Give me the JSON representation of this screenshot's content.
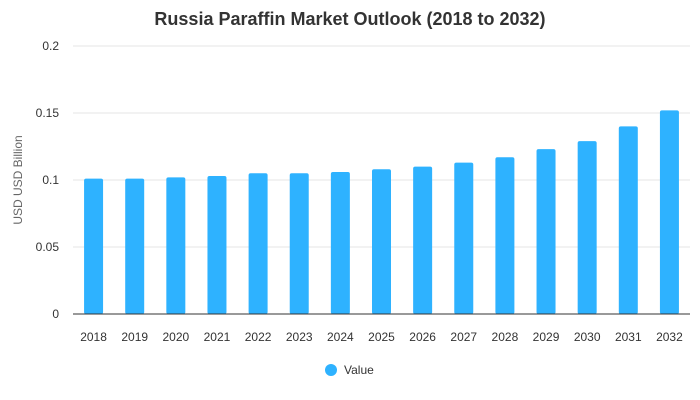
{
  "colors": {
    "bar": "#2eb2ff",
    "grid": "#e6e6e6",
    "axis": "#333333"
  },
  "chart_data": {
    "type": "bar",
    "title": "Russia Paraffin Market Outlook (2018 to 2032)",
    "xlabel": "",
    "ylabel": "USD USD Billion",
    "categories": [
      "2018",
      "2019",
      "2020",
      "2021",
      "2022",
      "2023",
      "2024",
      "2025",
      "2026",
      "2027",
      "2028",
      "2029",
      "2030",
      "2031",
      "2032"
    ],
    "series": [
      {
        "name": "Value",
        "values": [
          0.101,
          0.101,
          0.102,
          0.103,
          0.105,
          0.105,
          0.106,
          0.108,
          0.11,
          0.113,
          0.117,
          0.123,
          0.129,
          0.14,
          0.152
        ]
      }
    ],
    "ylim": [
      0,
      0.2
    ],
    "yticks": [
      "0",
      "0.05",
      "0.1",
      "0.15",
      "0.2"
    ],
    "ytick_values": [
      0,
      0.05,
      0.1,
      0.15,
      0.2
    ],
    "grid": true,
    "legend_position": "bottom"
  }
}
